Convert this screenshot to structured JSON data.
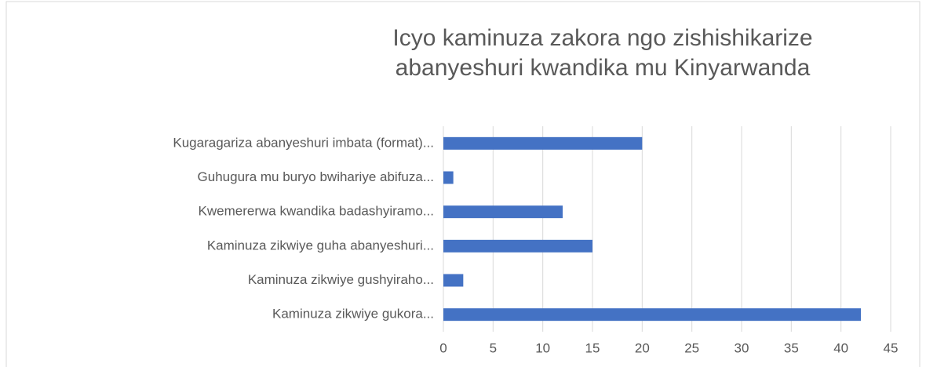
{
  "chart_data": {
    "type": "bar",
    "orientation": "horizontal",
    "title": [
      "Icyo kaminuza zakora ngo zishishikarize",
      "abanyeshuri kwandika mu Kinyarwanda"
    ],
    "categories": [
      "Kugaragariza abanyeshuri imbata (format)...",
      "Guhugura mu buryo bwihariye abifuza...",
      "Kwemererwa kwandika badashyiramo...",
      "Kaminuza zikwiye guha abanyeshuri...",
      "Kaminuza zikwiye gushyiraho...",
      "Kaminuza zikwiye gukora..."
    ],
    "values": [
      20,
      1,
      12,
      15,
      2,
      42
    ],
    "color": "#4472c4",
    "xlim": [
      0,
      45
    ],
    "xticks": [
      0,
      5,
      10,
      15,
      20,
      25,
      30,
      35,
      40,
      45
    ],
    "grid": true
  }
}
